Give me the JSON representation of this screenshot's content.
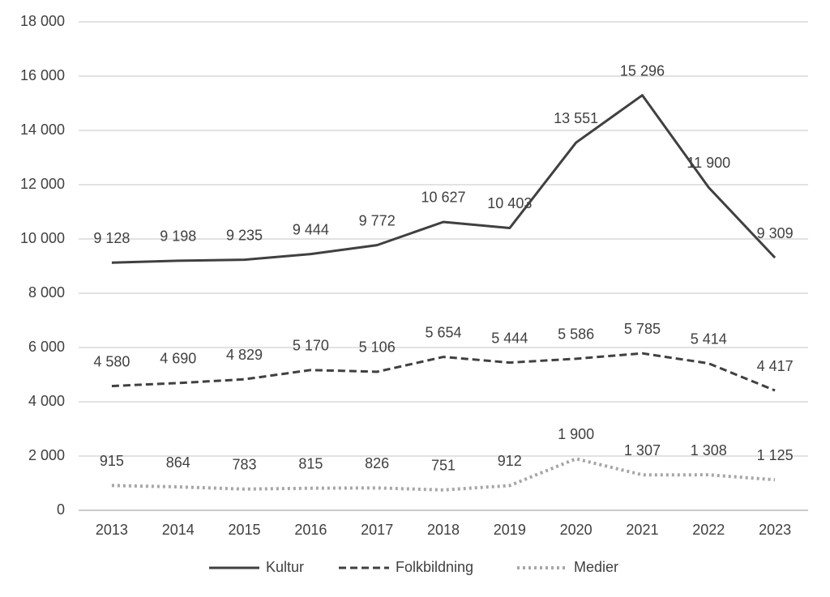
{
  "chart_data": {
    "type": "line",
    "categories": [
      "2013",
      "2014",
      "2015",
      "2016",
      "2017",
      "2018",
      "2019",
      "2020",
      "2021",
      "2022",
      "2023"
    ],
    "series": [
      {
        "name": "Kultur",
        "color": "#404040",
        "style": "solid",
        "values": [
          9128,
          9198,
          9235,
          9444,
          9772,
          10627,
          10403,
          13551,
          15296,
          11900,
          9309
        ],
        "value_labels": [
          "9 128",
          "9 198",
          "9 235",
          "9 444",
          "9 772",
          "10 627",
          "10 403",
          "13 551",
          "15 296",
          "11 900",
          "9 309"
        ]
      },
      {
        "name": "Folkbildning",
        "color": "#404040",
        "style": "dashed",
        "values": [
          4580,
          4690,
          4829,
          5170,
          5106,
          5654,
          5444,
          5586,
          5785,
          5414,
          4417
        ],
        "value_labels": [
          "4 580",
          "4 690",
          "4 829",
          "5 170",
          "5 106",
          "5 654",
          "5 444",
          "5 586",
          "5 785",
          "5 414",
          "4 417"
        ]
      },
      {
        "name": "Medier",
        "color": "#a6a6a6",
        "style": "dotted",
        "values": [
          915,
          864,
          783,
          815,
          826,
          751,
          912,
          1900,
          1307,
          1308,
          1125
        ],
        "value_labels": [
          "915",
          "864",
          "783",
          "815",
          "826",
          "751",
          "912",
          "1 900",
          "1 307",
          "1 308",
          "1 125"
        ]
      }
    ],
    "ylim": [
      0,
      18000
    ],
    "yticks": [
      0,
      {
        "value": 2000,
        "label": "2 000"
      },
      {
        "value": 4000,
        "label": "4 000"
      },
      {
        "value": 6000,
        "label": "6 000"
      },
      {
        "value": 8000,
        "label": "8 000"
      },
      {
        "value": 10000,
        "label": "10 000"
      },
      {
        "value": 12000,
        "label": "12 000"
      },
      {
        "value": 14000,
        "label": "14 000"
      },
      {
        "value": 16000,
        "label": "16 000"
      },
      {
        "value": 18000,
        "label": "18 000"
      }
    ],
    "grid": true,
    "legend": "bottom"
  }
}
